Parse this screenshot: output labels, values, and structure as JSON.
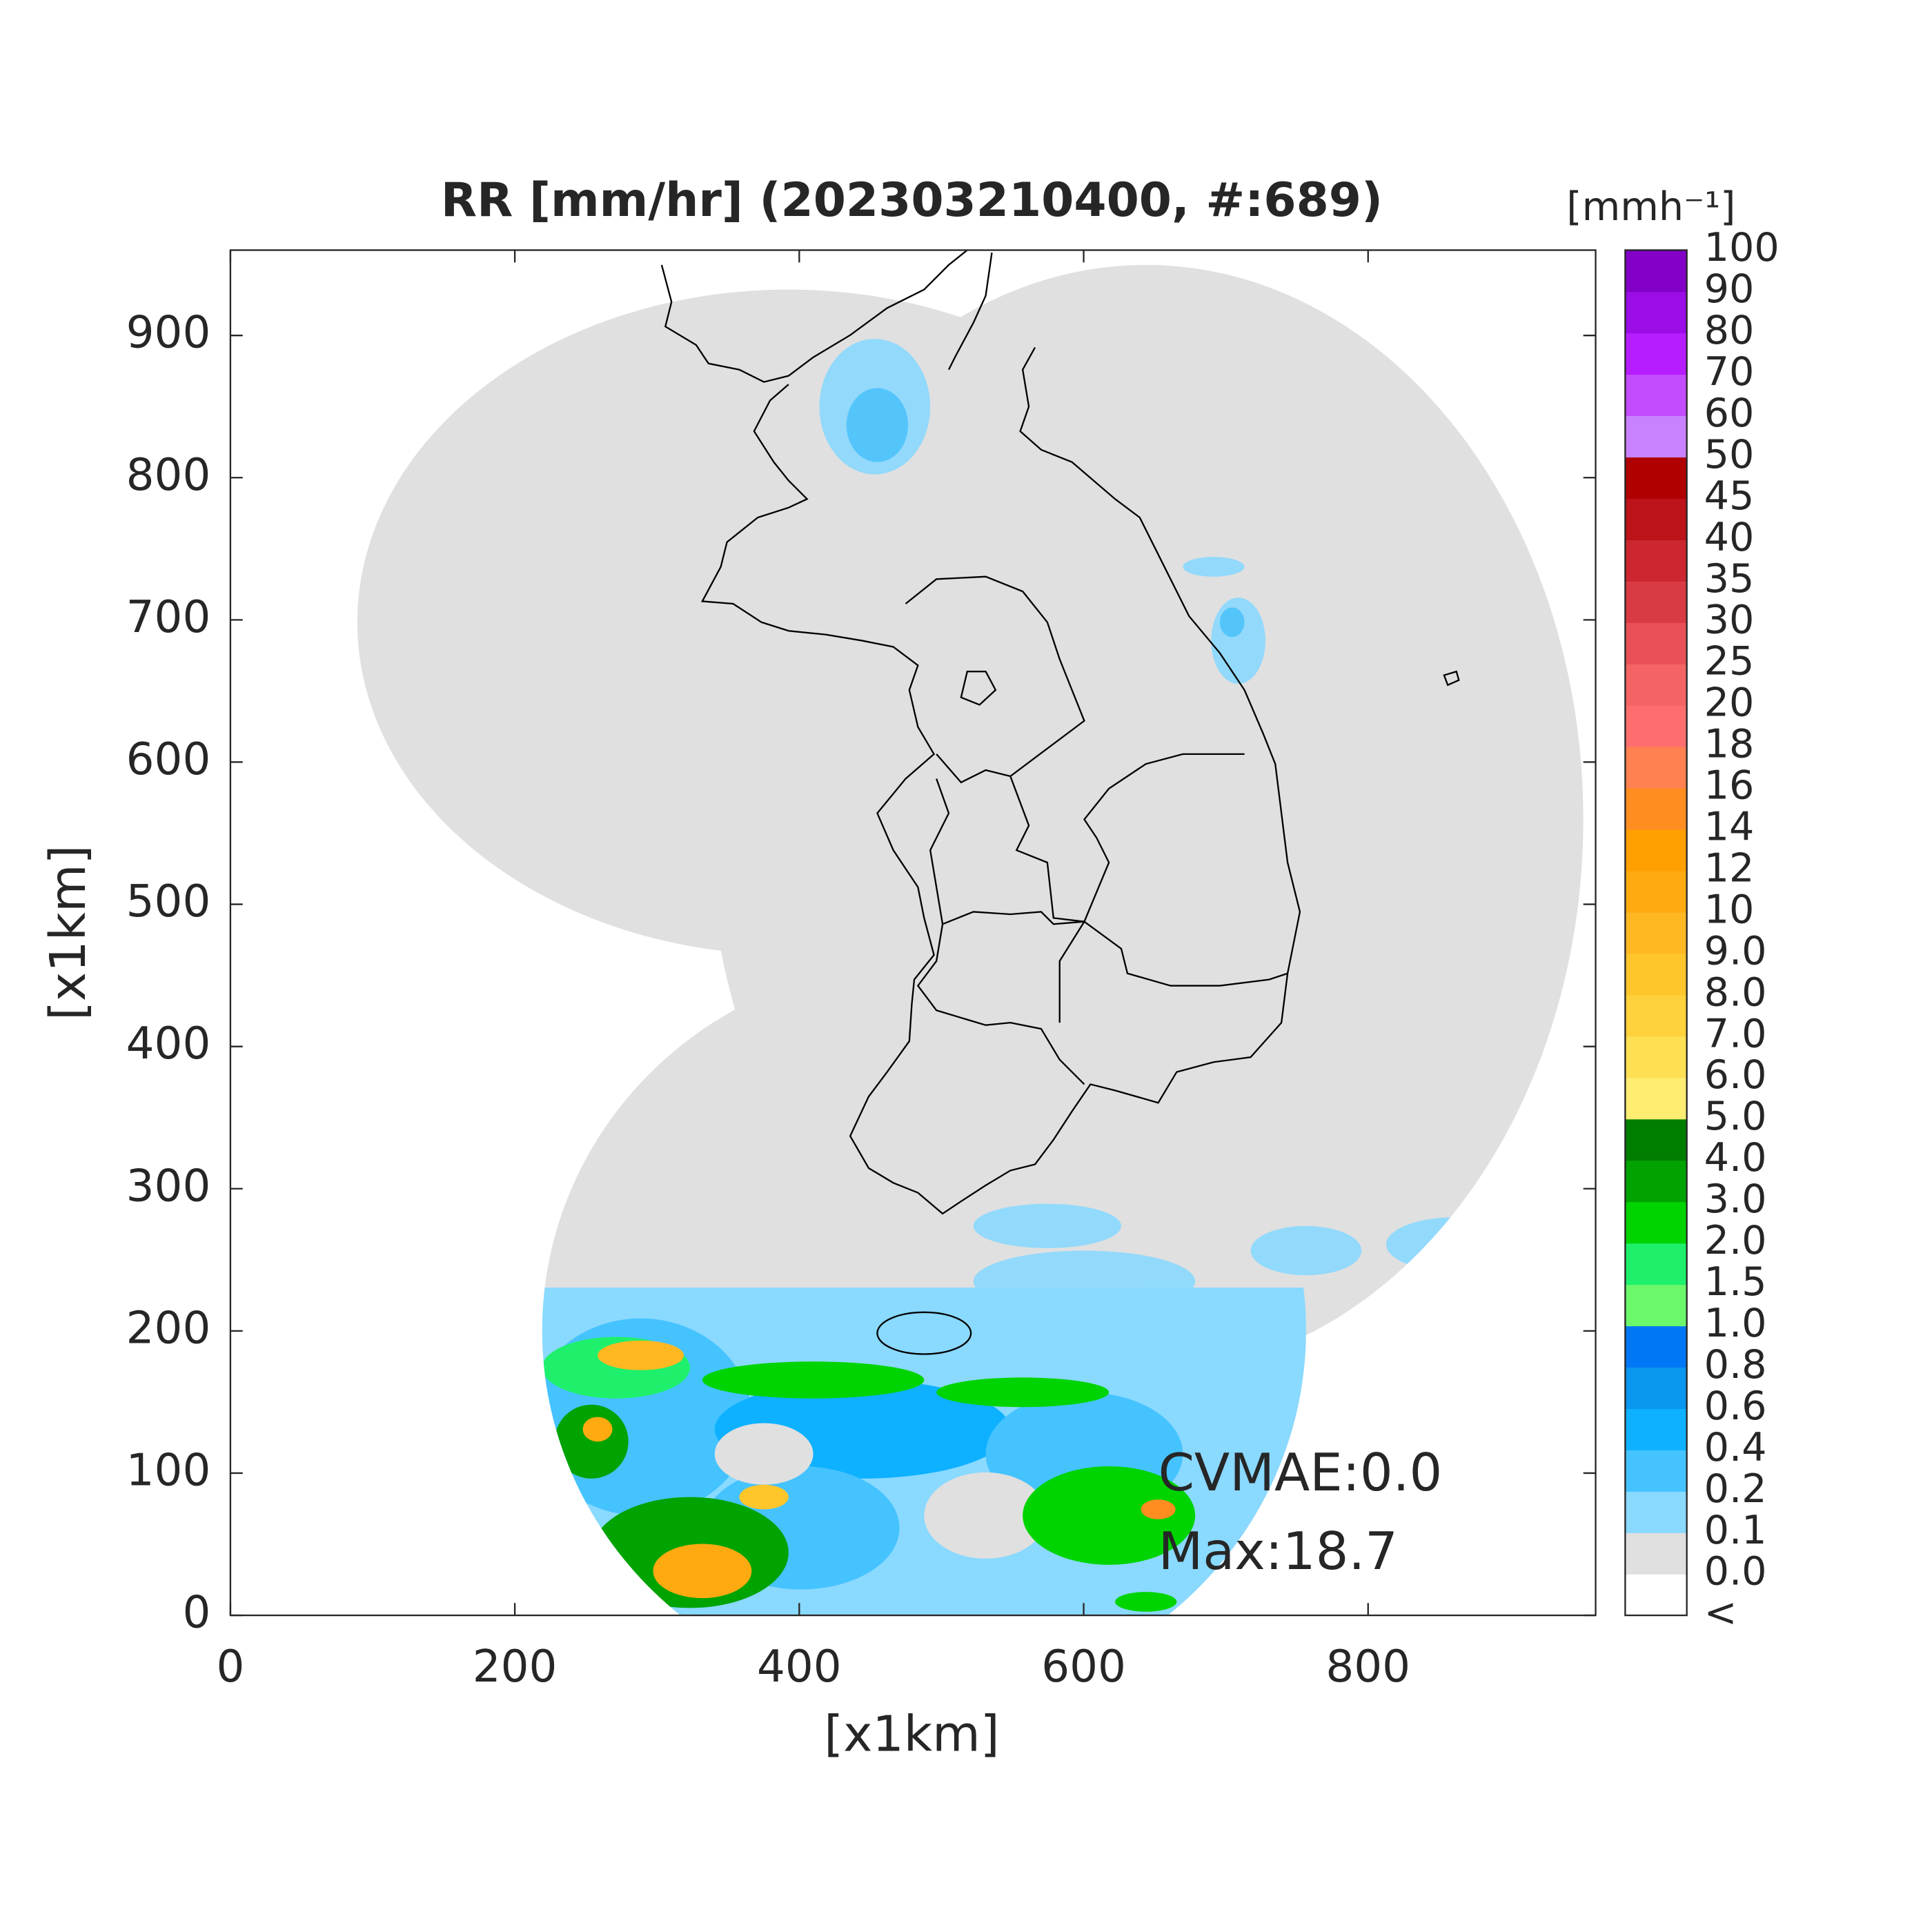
{
  "chart_data": {
    "type": "map",
    "title": "RR [mm/hr] (202303210400, #:689)",
    "xlabel": "[x1km]",
    "ylabel": "[x1km]",
    "xlim": [
      0,
      960
    ],
    "ylim": [
      0,
      960
    ],
    "xticks": [
      0,
      200,
      400,
      600,
      800
    ],
    "yticks": [
      0,
      100,
      200,
      300,
      400,
      500,
      600,
      700,
      800,
      900
    ],
    "colorbar": {
      "label": "[mmh⁻¹]",
      "labels": [
        "<",
        "0.0",
        "0.1",
        "0.2",
        "0.4",
        "0.6",
        "0.8",
        "1.0",
        "1.5",
        "2.0",
        "3.0",
        "4.0",
        "5.0",
        "6.0",
        "7.0",
        "8.0",
        "9.0",
        "10",
        "12",
        "14",
        "16",
        "18",
        "20",
        "25",
        "30",
        "35",
        "40",
        "45",
        "50",
        "60",
        "70",
        "80",
        "90",
        "100"
      ],
      "colors": [
        "#ffffff",
        "#e0e0e0",
        "#8ad9ff",
        "#45c3ff",
        "#0db1ff",
        "#0a97ef",
        "#0078f5",
        "#6bf86b",
        "#1ef06c",
        "#00d400",
        "#00a300",
        "#007e00",
        "#ffed72",
        "#ffe055",
        "#ffd23d",
        "#ffc62c",
        "#ffb822",
        "#ffaa10",
        "#ffa000",
        "#ff8d20",
        "#ff8050",
        "#ff6e6e",
        "#f56465",
        "#ea5058",
        "#da3a44",
        "#cc2630",
        "#bc1219",
        "#b00000",
        "#c882ff",
        "#c44cff",
        "#b51cff",
        "#9b0ce6",
        "#8200c8",
        "#333333"
      ]
    },
    "annotations": [
      "CVMAE:0.0",
      "Max:18.7"
    ]
  }
}
